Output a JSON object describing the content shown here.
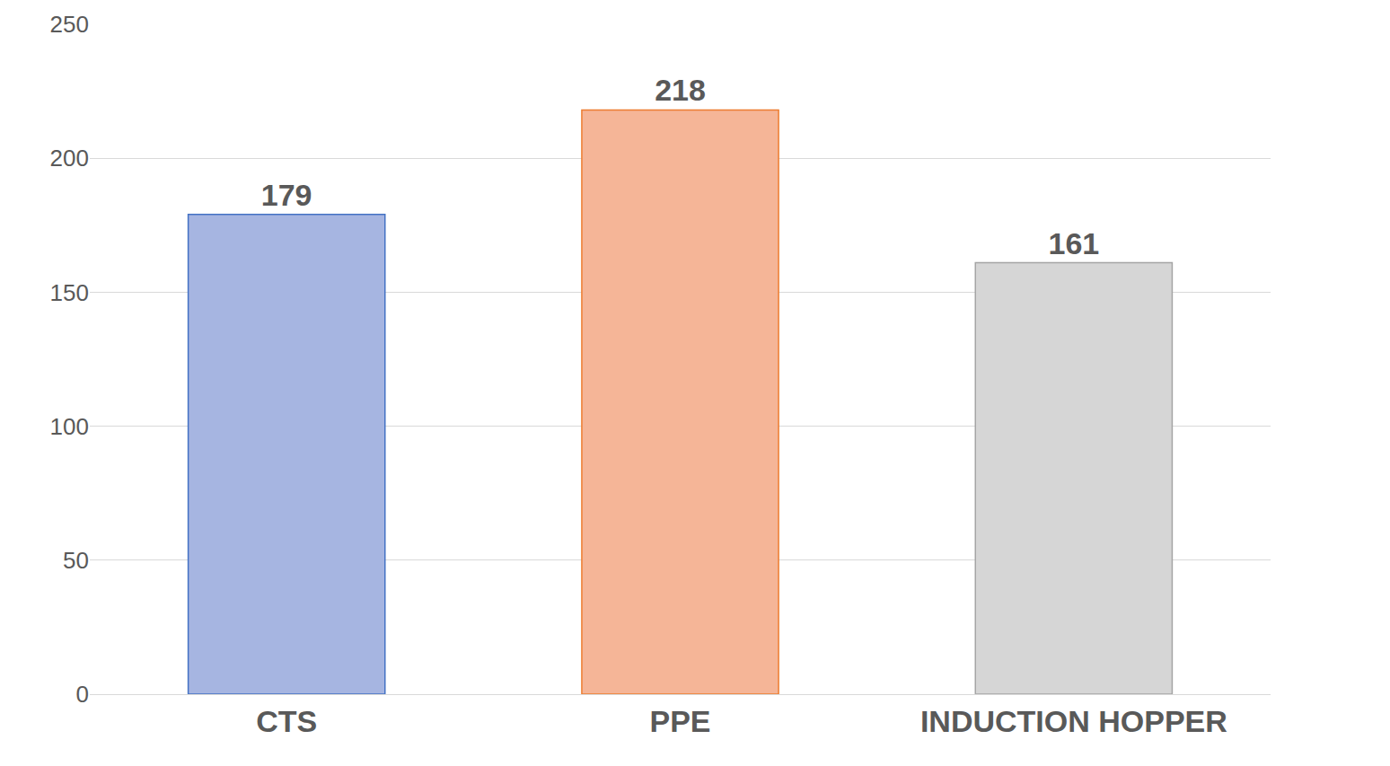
{
  "chart_data": {
    "type": "bar",
    "categories": [
      "CTS",
      "PPE",
      "INDUCTION HOPPER"
    ],
    "values": [
      179,
      218,
      161
    ],
    "colors": [
      "#a6b5e1",
      "#f5b597",
      "#d6d6d6"
    ],
    "ylim": [
      0,
      250
    ],
    "yticks": [
      0,
      50,
      100,
      150,
      200,
      250
    ],
    "grid": true,
    "data_labels": true
  }
}
